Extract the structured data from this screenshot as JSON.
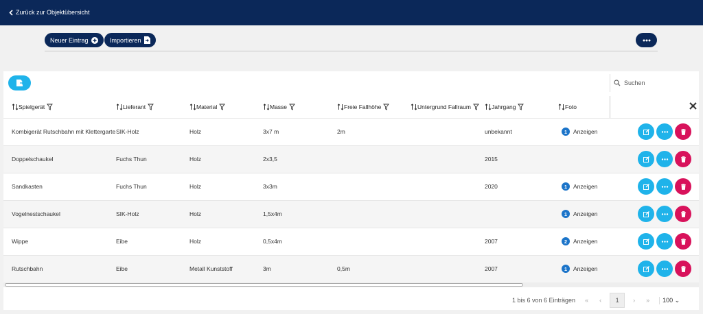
{
  "nav": {
    "back": "Zurück zur Objektübersicht"
  },
  "toolbar": {
    "new_entry": "Neuer Eintrag",
    "import": "Importieren"
  },
  "search": {
    "placeholder": "Suchen"
  },
  "table": {
    "headers": [
      "Spielgerät",
      "Lieferant",
      "Material",
      "Masse",
      "Freie Fallhöhe",
      "Untergrund Fallraum",
      "Jahrgang",
      "Foto"
    ],
    "rows": [
      [
        "Kombigerät Rutschbahn mit Klettergarte",
        "SIK-Holz",
        "Holz",
        "3x7 m",
        "2m",
        null,
        "unbekannt"
      ],
      [
        "Doppelschaukel",
        "Fuchs Thun",
        "Holz",
        "2x3,5",
        null,
        null,
        "2015"
      ],
      [
        "Sandkasten",
        "Fuchs Thun",
        "Holz",
        "3x3m",
        null,
        null,
        "2020"
      ],
      [
        "Vogelnestschaukel",
        "SIK-Holz",
        "Holz",
        "1,5x4m",
        null,
        null,
        null
      ],
      [
        "Wippe",
        "Eibe",
        "Holz",
        "0,5x4m",
        null,
        null,
        "2007"
      ],
      [
        "Rutschbahn",
        "Eibe",
        "Metall Kunststoff",
        "3m",
        "0,5m",
        null,
        "2007"
      ]
    ],
    "photos": [
      {
        "count": 1,
        "label": "Anzeigen"
      },
      null,
      {
        "count": 1,
        "label": "Anzeigen"
      },
      {
        "count": 1,
        "label": "Anzeigen"
      },
      {
        "count": 2,
        "label": "Anzeigen"
      },
      {
        "count": 1,
        "label": "Anzeigen"
      }
    ]
  },
  "footer": {
    "info": "1 bis 6 von 6 Einträgen",
    "page": 1,
    "page_size": 100
  }
}
